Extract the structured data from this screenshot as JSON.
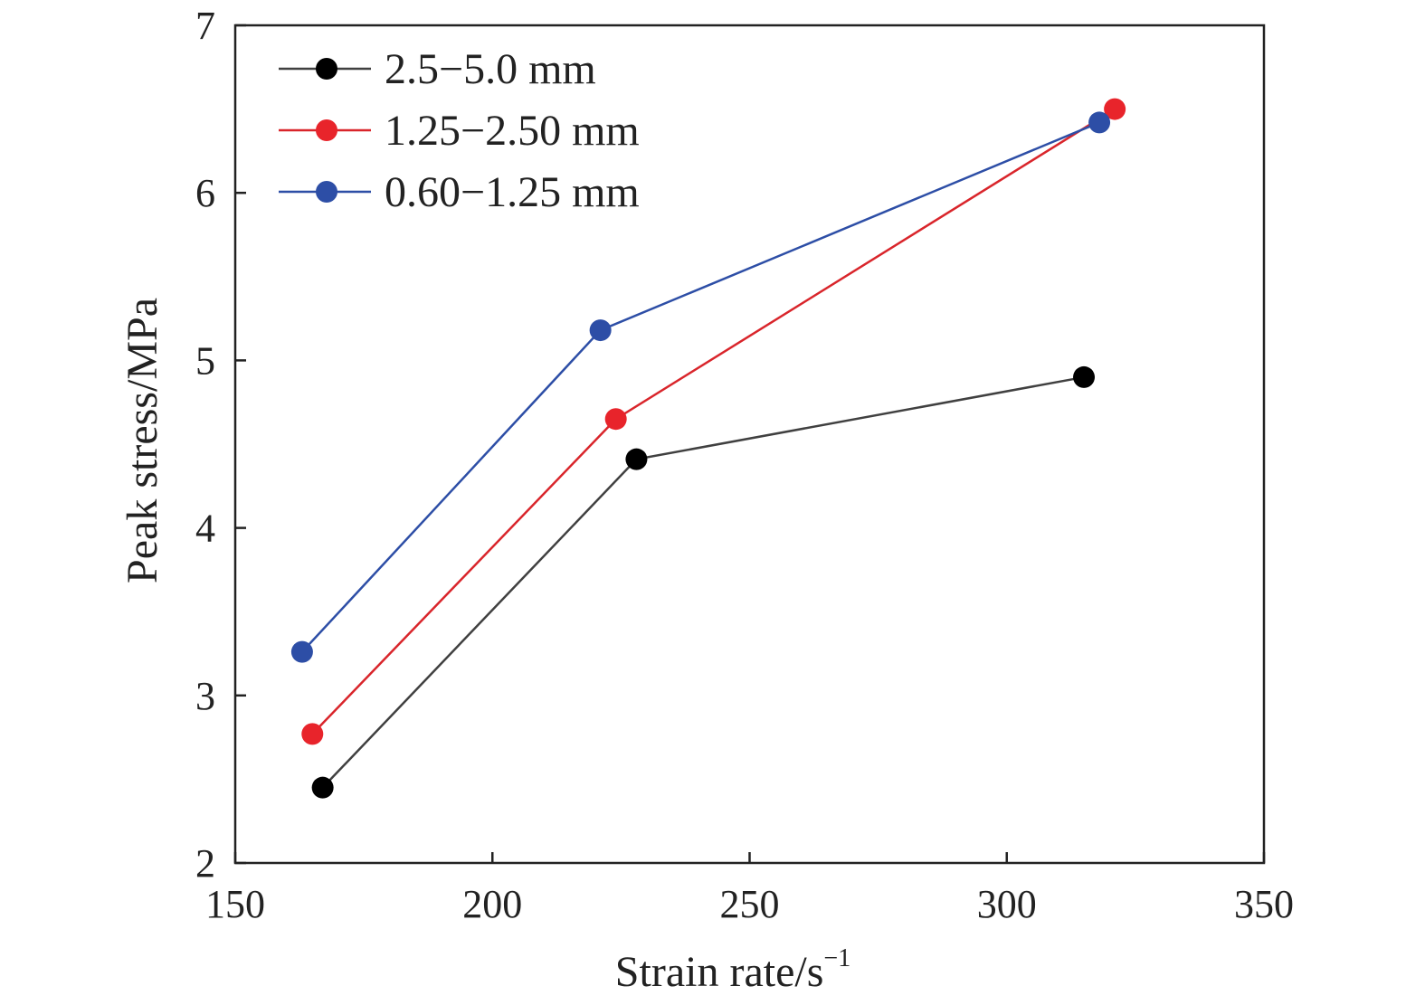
{
  "chart_data": {
    "type": "line",
    "title": "",
    "xlabel": "Strain rate/s",
    "xlabel_superscript": "−1",
    "ylabel": "Peak stress/MPa",
    "xlim": [
      150,
      350
    ],
    "ylim": [
      2,
      7
    ],
    "xticks": [
      150,
      200,
      250,
      300,
      350
    ],
    "yticks": [
      2,
      3,
      4,
      5,
      6,
      7
    ],
    "grid": false,
    "legend_position": "top-left",
    "series": [
      {
        "name": "2.5−5.0 mm",
        "color": "#000000",
        "line_color": "#404040",
        "x": [
          167,
          228,
          315
        ],
        "y": [
          2.45,
          4.41,
          4.9
        ]
      },
      {
        "name": "1.25−2.50 mm",
        "color": "#e8242b",
        "line_color": "#d9252b",
        "x": [
          165,
          224,
          321
        ],
        "y": [
          2.77,
          4.65,
          6.5
        ]
      },
      {
        "name": "0.60−1.25 mm",
        "color": "#2d4ea6",
        "line_color": "#2d4ea6",
        "x": [
          163,
          221,
          318
        ],
        "y": [
          3.26,
          5.18,
          6.42
        ]
      }
    ]
  }
}
